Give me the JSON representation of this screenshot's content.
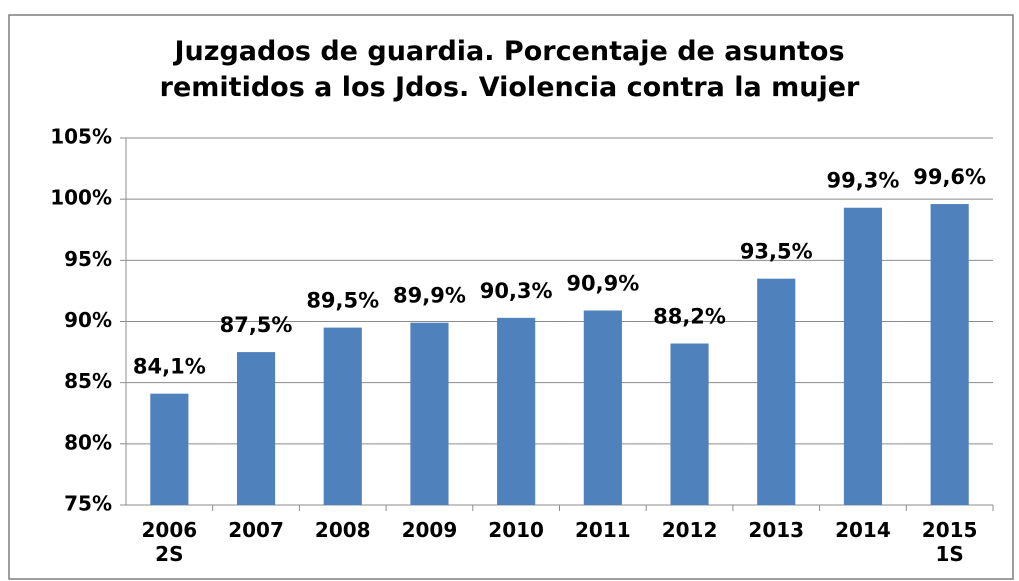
{
  "chart_data": {
    "type": "bar",
    "title": "Juzgados de guardia. Porcentaje de asuntos\nremitidos a los Jdos. Violencia contra la mujer",
    "categories": [
      "2006\n2S",
      "2007",
      "2008",
      "2009",
      "2010",
      "2011",
      "2012",
      "2013",
      "2014",
      "2015\n1S"
    ],
    "values": [
      84.1,
      87.5,
      89.5,
      89.9,
      90.3,
      90.9,
      88.2,
      93.5,
      99.3,
      99.6
    ],
    "value_labels": [
      "84,1%",
      "87,5%",
      "89,5%",
      "89,9%",
      "90,3%",
      "90,9%",
      "88,2%",
      "93,5%",
      "99,3%",
      "99,6%"
    ],
    "color": "#4f81bd",
    "ylim": [
      75,
      105
    ],
    "yticks": [
      {
        "value": 75,
        "label": "75%"
      },
      {
        "value": 80,
        "label": "80%"
      },
      {
        "value": 85,
        "label": "85%"
      },
      {
        "value": 90,
        "label": "90%"
      },
      {
        "value": 95,
        "label": "95%"
      },
      {
        "value": 100,
        "label": "100%"
      },
      {
        "value": 105,
        "label": "105%"
      }
    ],
    "grid": true
  }
}
